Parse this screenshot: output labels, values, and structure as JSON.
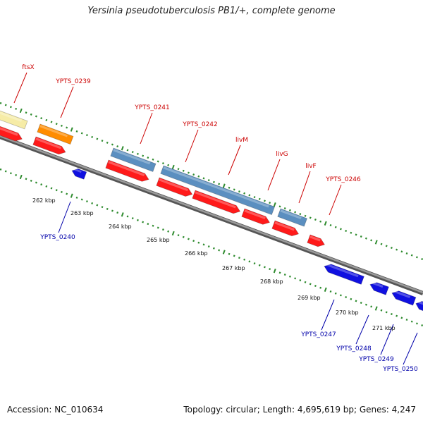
{
  "title": "Yersinia pseudotuberculosis PB1/+, complete genome",
  "footer": {
    "accession": "Accession: NC_010634",
    "summary": "Topology: circular; Length: 4,695,619 bp; Genes: 4,247"
  },
  "colors": {
    "forward_cds": "#ff1a1a",
    "reverse_cds": "#1010e0",
    "steel_gene": "#5b8fc0",
    "orange_gene": "#ff8c00",
    "pale_gene": "#f6eca6",
    "backbone": "#7a7a7a",
    "tick": "#2e8b2e",
    "forward_label": "#cc0000",
    "reverse_label": "#0000aa"
  },
  "scale_labels": [
    "262 kbp",
    "263 kbp",
    "264 kbp",
    "265 kbp",
    "266 kbp",
    "267 kbp",
    "268 kbp",
    "269 kbp",
    "270 kbp",
    "271 kbp"
  ],
  "gene_labels": [
    {
      "text": "ftsX",
      "strand": "forward"
    },
    {
      "text": "YPTS_0239",
      "strand": "forward"
    },
    {
      "text": "YPTS_0241",
      "strand": "forward"
    },
    {
      "text": "YPTS_0242",
      "strand": "forward"
    },
    {
      "text": "livM",
      "strand": "forward"
    },
    {
      "text": "livG",
      "strand": "forward"
    },
    {
      "text": "livF",
      "strand": "forward"
    },
    {
      "text": "YPTS_0246",
      "strand": "forward"
    },
    {
      "text": "YPTS_0240",
      "strand": "reverse"
    },
    {
      "text": "YPTS_0247",
      "strand": "reverse"
    },
    {
      "text": "YPTS_0248",
      "strand": "reverse"
    },
    {
      "text": "YPTS_0249",
      "strand": "reverse"
    },
    {
      "text": "YPTS_0250",
      "strand": "reverse"
    }
  ]
}
